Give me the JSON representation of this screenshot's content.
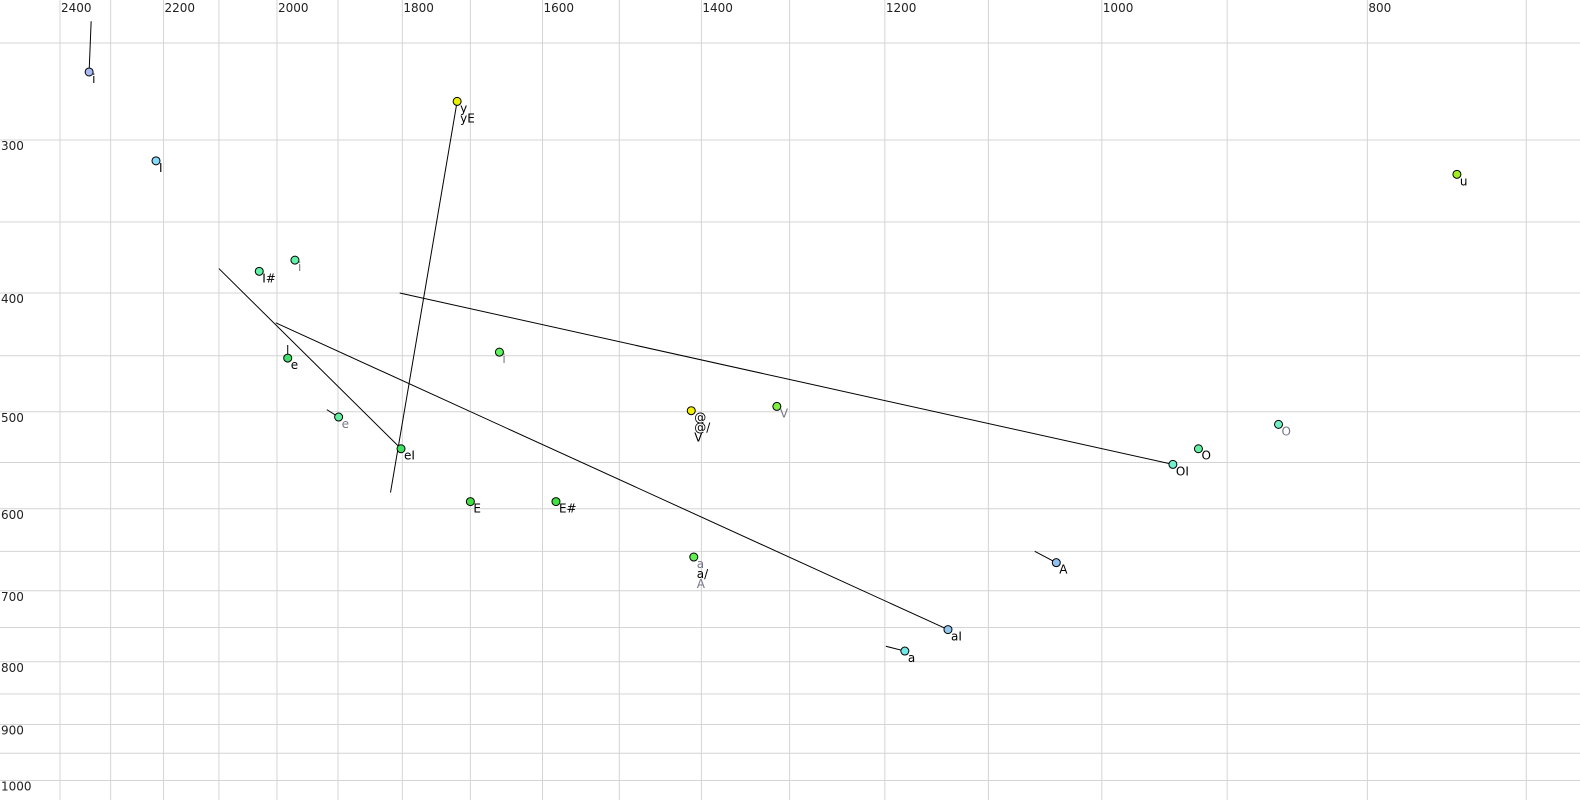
{
  "chart_data": {
    "type": "scatter",
    "title": "",
    "xlabel": "",
    "ylabel": "",
    "x_axis": {
      "scale": "log",
      "reversed": true,
      "range": [
        2524,
        669
      ],
      "tick_labels": [
        2400,
        2200,
        2000,
        1800,
        1600,
        1400,
        1200,
        1000,
        800
      ],
      "grid_step": 100
    },
    "y_axis": {
      "scale": "log",
      "reversed": false,
      "range": [
        240,
        1020
      ],
      "tick_labels": [
        300,
        400,
        500,
        600,
        700,
        800,
        900,
        1000
      ],
      "grid_step": 50
    },
    "grid": true,
    "label_colors": {
      "primary": "#000000",
      "secondary": "#777788"
    },
    "points": [
      {
        "x": 2342,
        "y": 264,
        "labels": [
          "i"
        ],
        "fill": "#a8b8f0",
        "from": [
          2338,
          240
        ]
      },
      {
        "x": 2214,
        "y": 312,
        "labels": [
          "I"
        ],
        "fill": "#88d8f8"
      },
      {
        "x": 2030,
        "y": 384,
        "labels": [
          "I#"
        ],
        "fill": "#60f0a8"
      },
      {
        "x": 1970,
        "y": 376,
        "labels": [
          "i"
        ],
        "secondary": true,
        "fill": "#60f0a8"
      },
      {
        "x": 1982,
        "y": 452,
        "labels": [
          "e"
        ],
        "fill": "#40e070",
        "from": [
          1982,
          441
        ]
      },
      {
        "x": 1899,
        "y": 505,
        "labels": [
          "e"
        ],
        "secondary": true,
        "fill": "#60f0a0",
        "from": [
          1918,
          498
        ]
      },
      {
        "x": 1802,
        "y": 536,
        "labels": [
          "eI"
        ],
        "fill": "#40e060",
        "from": [
          2100,
          382
        ]
      },
      {
        "x": 1719,
        "y": 279,
        "labels": [
          "y",
          "yE"
        ],
        "fill": "#e8f000",
        "from": [
          1818,
          582
        ]
      },
      {
        "x": 1659,
        "y": 447,
        "labels": [
          "i"
        ],
        "secondary": true,
        "fill": "#60f060"
      },
      {
        "x": 1700,
        "y": 592,
        "labels": [
          "E"
        ],
        "fill": "#40e040"
      },
      {
        "x": 1582,
        "y": 592,
        "labels": [
          "E#"
        ],
        "fill": "#40e040"
      },
      {
        "x": 1412,
        "y": 499,
        "labels": [
          "@",
          "@/",
          "V"
        ],
        "fill": "#f0f000"
      },
      {
        "x": 1314,
        "y": 495,
        "labels": [
          "V"
        ],
        "secondary": true,
        "fill": "#80f040"
      },
      {
        "x": 1409,
        "y": 657,
        "labels": [
          "a",
          "a/",
          "A"
        ],
        "label_secondary": [
          true,
          false,
          true
        ],
        "fill": "#60f050"
      },
      {
        "x": 1138,
        "y": 753,
        "labels": [
          "aI"
        ],
        "fill": "#90c8f0",
        "from": [
          2002,
          423
        ]
      },
      {
        "x": 1180,
        "y": 784,
        "labels": [
          "a"
        ],
        "fill": "#70e8e8",
        "from": [
          1199,
          777
        ]
      },
      {
        "x": 1039,
        "y": 664,
        "labels": [
          "A"
        ],
        "fill": "#90c0f0",
        "from": [
          1058,
          650
        ]
      },
      {
        "x": 942,
        "y": 552,
        "labels": [
          "OI"
        ],
        "fill": "#70f0d0",
        "from": [
          1804,
          400
        ]
      },
      {
        "x": 922,
        "y": 536,
        "labels": [
          "O"
        ],
        "fill": "#60f0a0"
      },
      {
        "x": 862,
        "y": 512,
        "labels": [
          "O"
        ],
        "secondary": true,
        "fill": "#70f0c0"
      },
      {
        "x": 742,
        "y": 320,
        "labels": [
          "u"
        ],
        "fill": "#a0f020"
      }
    ]
  }
}
